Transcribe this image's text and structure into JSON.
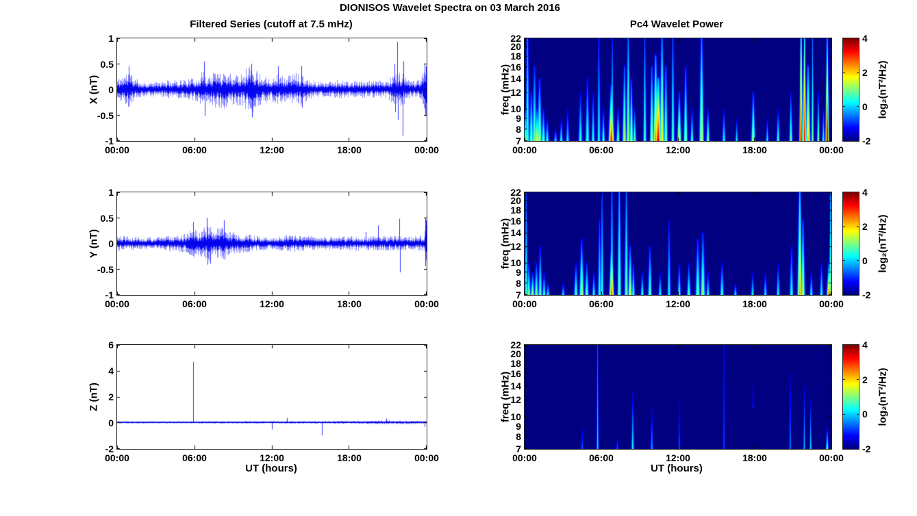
{
  "figure_title": "DIONISOS Wavelet Spectra on 03 March 2016",
  "column_titles": {
    "left": "Filtered Series (cutoff at 7.5 mHz)",
    "right": "Pc4 Wavelet Power"
  },
  "xlabel": "UT (hours)",
  "time_ticks": {
    "labels": [
      "00:00",
      "06:00",
      "12:00",
      "18:00",
      "00:00"
    ],
    "fractions": [
      0,
      0.25,
      0.5,
      0.75,
      1
    ]
  },
  "colorbar": {
    "label": "log₂(nT²/Hz)",
    "ticks": [
      4,
      2,
      0,
      -2
    ],
    "range": [
      -2,
      4
    ],
    "colormap": "jet"
  },
  "colors": {
    "line": "#0000ff",
    "background": "#ffffff",
    "axis": "#000000",
    "heatmap_background": "#000080"
  },
  "chart_data": [
    {
      "type": "line",
      "panel": "X",
      "ylabel": "X (nT)",
      "ylim": [
        -1,
        1
      ],
      "yticks": [
        1,
        0.5,
        0,
        -0.5,
        -1
      ],
      "x_range_hours": [
        0,
        24
      ],
      "xticks": [
        "00:00",
        "06:00",
        "12:00",
        "18:00",
        "00:00"
      ],
      "envelope_note": "[time_h, amplitude_nT] noise envelope",
      "envelope": [
        [
          0,
          0.18
        ],
        [
          0.5,
          0.25
        ],
        [
          0.9,
          0.3
        ],
        [
          1.3,
          0.2
        ],
        [
          2,
          0.12
        ],
        [
          3,
          0.12
        ],
        [
          4,
          0.15
        ],
        [
          5,
          0.17
        ],
        [
          6,
          0.18
        ],
        [
          6.7,
          0.3
        ],
        [
          7,
          0.22
        ],
        [
          7.6,
          0.3
        ],
        [
          8.3,
          0.32
        ],
        [
          9,
          0.26
        ],
        [
          9.7,
          0.3
        ],
        [
          10.3,
          0.42
        ],
        [
          10.6,
          0.38
        ],
        [
          11,
          0.28
        ],
        [
          11.6,
          0.24
        ],
        [
          12,
          0.2
        ],
        [
          12.5,
          0.27
        ],
        [
          13,
          0.2
        ],
        [
          13.8,
          0.28
        ],
        [
          14.3,
          0.28
        ],
        [
          15,
          0.15
        ],
        [
          16,
          0.13
        ],
        [
          17,
          0.16
        ],
        [
          18,
          0.13
        ],
        [
          19,
          0.14
        ],
        [
          20,
          0.14
        ],
        [
          21,
          0.16
        ],
        [
          21.8,
          0.3
        ],
        [
          22.2,
          0.28
        ],
        [
          22.6,
          0.15
        ],
        [
          23,
          0.14
        ],
        [
          23.6,
          0.16
        ],
        [
          23.85,
          0.35
        ],
        [
          24,
          0.5
        ]
      ],
      "spikes": [
        [
          0.9,
          0.45
        ],
        [
          0.93,
          -0.33
        ],
        [
          6.78,
          0.55
        ],
        [
          6.8,
          -0.52
        ],
        [
          10.42,
          0.5
        ],
        [
          10.5,
          -0.55
        ],
        [
          12.52,
          0.45
        ],
        [
          14.32,
          0.46
        ],
        [
          14.35,
          -0.36
        ],
        [
          21.55,
          0.5
        ],
        [
          21.6,
          -0.45
        ],
        [
          21.77,
          0.93
        ],
        [
          21.82,
          -0.6
        ],
        [
          22.2,
          -0.91
        ],
        [
          22.25,
          0.55
        ],
        [
          23.9,
          0.5
        ],
        [
          23.95,
          -0.5
        ],
        [
          23.99,
          0.45
        ]
      ]
    },
    {
      "type": "line",
      "panel": "Y",
      "ylabel": "Y (nT)",
      "ylim": [
        -1,
        1
      ],
      "yticks": [
        1,
        0.5,
        0,
        -0.5,
        -1
      ],
      "x_range_hours": [
        0,
        24
      ],
      "xticks": [
        "00:00",
        "06:00",
        "12:00",
        "18:00",
        "00:00"
      ],
      "envelope": [
        [
          0,
          0.14
        ],
        [
          1,
          0.13
        ],
        [
          2,
          0.1
        ],
        [
          3,
          0.1
        ],
        [
          4,
          0.13
        ],
        [
          4.6,
          0.16
        ],
        [
          5.3,
          0.15
        ],
        [
          5.9,
          0.26
        ],
        [
          6.3,
          0.22
        ],
        [
          6.9,
          0.3
        ],
        [
          7.2,
          0.3
        ],
        [
          7.6,
          0.23
        ],
        [
          8.2,
          0.28
        ],
        [
          8.6,
          0.2
        ],
        [
          9.3,
          0.17
        ],
        [
          10,
          0.15
        ],
        [
          11,
          0.12
        ],
        [
          12,
          0.11
        ],
        [
          13,
          0.13
        ],
        [
          14,
          0.14
        ],
        [
          15,
          0.12
        ],
        [
          16,
          0.1
        ],
        [
          17,
          0.11
        ],
        [
          18,
          0.12
        ],
        [
          19,
          0.12
        ],
        [
          20,
          0.12
        ],
        [
          21,
          0.12
        ],
        [
          22,
          0.12
        ],
        [
          23,
          0.12
        ],
        [
          23.8,
          0.15
        ],
        [
          24,
          0.35
        ]
      ],
      "spikes": [
        [
          5.92,
          0.42
        ],
        [
          6.95,
          0.5
        ],
        [
          7.0,
          -0.42
        ],
        [
          7.25,
          -0.4
        ],
        [
          8.3,
          0.45
        ],
        [
          8.33,
          -0.32
        ],
        [
          19.3,
          0.22
        ],
        [
          20.3,
          0.35
        ],
        [
          21.95,
          0.48
        ],
        [
          22.0,
          -0.57
        ],
        [
          23.95,
          0.5
        ],
        [
          23.97,
          -0.45
        ],
        [
          24,
          0.45
        ]
      ]
    },
    {
      "type": "line",
      "panel": "Z",
      "ylabel": "Z (nT)",
      "ylim": [
        -2,
        6
      ],
      "yticks": [
        6,
        4,
        2,
        0,
        -2
      ],
      "x_range_hours": [
        0,
        24
      ],
      "xticks": [
        "00:00",
        "06:00",
        "12:00",
        "18:00",
        "00:00"
      ],
      "envelope": [
        [
          0,
          0.07
        ],
        [
          4,
          0.07
        ],
        [
          8,
          0.08
        ],
        [
          12,
          0.08
        ],
        [
          16,
          0.09
        ],
        [
          19,
          0.1
        ],
        [
          21,
          0.13
        ],
        [
          22,
          0.12
        ],
        [
          24,
          0.1
        ]
      ],
      "spikes": [
        [
          5.9,
          4.7
        ],
        [
          12.05,
          -0.55
        ],
        [
          13.2,
          0.35
        ],
        [
          15.9,
          -1.0
        ],
        [
          20.9,
          0.3
        ],
        [
          23.9,
          -0.35
        ]
      ]
    },
    {
      "type": "heatmap",
      "panel": "X",
      "ylabel": "freq (mHz)",
      "yscale": "log",
      "ylim_mHz": [
        7,
        22
      ],
      "yticks": [
        22,
        20,
        18,
        16,
        14,
        12,
        10,
        9,
        8,
        7
      ],
      "zlabel": "log₂(nT²/Hz)",
      "zlim": [
        -2,
        4
      ],
      "colormap": "jet",
      "event_format": "[time_h, freq_top_mHz, power_at_bottom, power_at_top, width_min, (optional freq_bottom_mHz)]",
      "events": [
        [
          0.05,
          10,
          1.5,
          -1,
          5
        ],
        [
          0.2,
          22,
          0.8,
          -0.5,
          6
        ],
        [
          0.5,
          12,
          1.2,
          -1,
          6
        ],
        [
          0.75,
          16,
          1.0,
          -1,
          7
        ],
        [
          0.95,
          10,
          1.9,
          -1,
          8
        ],
        [
          1.15,
          14,
          1.5,
          -1,
          7
        ],
        [
          1.45,
          10,
          1.0,
          -1.2,
          6
        ],
        [
          1.75,
          9,
          0.8,
          -1.4,
          5
        ],
        [
          2.4,
          8,
          0.3,
          -1.6,
          5
        ],
        [
          2.85,
          9,
          0.6,
          -1.5,
          5
        ],
        [
          3.35,
          10,
          0.4,
          -1.5,
          5
        ],
        [
          4.35,
          12,
          0.6,
          -1.3,
          6
        ],
        [
          4.9,
          14,
          0.9,
          -1.2,
          6
        ],
        [
          5.35,
          12,
          0.7,
          -1.3,
          5
        ],
        [
          5.8,
          22,
          0.5,
          -1,
          5
        ],
        [
          6.15,
          10,
          0.8,
          -1.3,
          5
        ],
        [
          6.78,
          13,
          3.2,
          -0.8,
          8
        ],
        [
          6.85,
          22,
          0.9,
          -0.9,
          4
        ],
        [
          7.3,
          10,
          1.2,
          -1.2,
          5
        ],
        [
          7.8,
          16,
          1.5,
          -0.8,
          6
        ],
        [
          8.1,
          22,
          1.3,
          -0.5,
          6
        ],
        [
          8.35,
          14,
          1.8,
          -1,
          5
        ],
        [
          8.6,
          10,
          1.0,
          -1.2,
          5
        ],
        [
          9.4,
          22,
          0.8,
          -0.8,
          5
        ],
        [
          9.95,
          16,
          1.5,
          -0.8,
          6
        ],
        [
          10.25,
          18,
          2.6,
          -0.5,
          7
        ],
        [
          10.45,
          14,
          3.6,
          -0.3,
          9
        ],
        [
          10.75,
          22,
          2.0,
          -0.5,
          7
        ],
        [
          11.05,
          16,
          1.2,
          -0.8,
          6
        ],
        [
          11.6,
          22,
          0.9,
          -0.7,
          5
        ],
        [
          12.1,
          12,
          2.1,
          -1,
          6
        ],
        [
          12.6,
          16,
          1.4,
          -1,
          6
        ],
        [
          13.1,
          10,
          0.8,
          -1.3,
          5
        ],
        [
          13.85,
          22,
          1.8,
          -0.6,
          7
        ],
        [
          14.35,
          10,
          1.2,
          -1.2,
          5
        ],
        [
          15.6,
          10,
          0.5,
          -1.4,
          5
        ],
        [
          16.6,
          9,
          0.4,
          -1.5,
          4
        ],
        [
          17.9,
          12,
          1.6,
          -1,
          6
        ],
        [
          19.0,
          9,
          0.4,
          -1.5,
          4
        ],
        [
          19.85,
          10,
          0.7,
          -1.4,
          5
        ],
        [
          20.85,
          12,
          1.0,
          -1.2,
          5
        ],
        [
          21.65,
          22,
          3.6,
          0.8,
          5
        ],
        [
          21.92,
          22,
          3.4,
          0.3,
          5
        ],
        [
          22.2,
          16,
          2.2,
          -0.5,
          7
        ],
        [
          22.55,
          22,
          1.0,
          -0.6,
          4
        ],
        [
          23.0,
          12,
          1.2,
          -1.1,
          4
        ],
        [
          23.4,
          10,
          0.7,
          -1.3,
          4
        ],
        [
          23.7,
          22,
          4.0,
          -0.2,
          5
        ]
      ]
    },
    {
      "type": "heatmap",
      "panel": "Y",
      "ylabel": "freq (mHz)",
      "yscale": "log",
      "ylim_mHz": [
        7,
        22
      ],
      "yticks": [
        22,
        20,
        18,
        16,
        14,
        12,
        10,
        9,
        8,
        7
      ],
      "zlabel": "log₂(nT²/Hz)",
      "zlim": [
        -2,
        4
      ],
      "colormap": "jet",
      "events": [
        [
          0.1,
          22,
          0.7,
          -0.8,
          5
        ],
        [
          0.3,
          10,
          1.2,
          -1.2,
          6
        ],
        [
          0.6,
          9,
          1.3,
          -1.2,
          6
        ],
        [
          0.9,
          10,
          1.2,
          -1.2,
          6
        ],
        [
          1.2,
          12,
          0.9,
          -1.2,
          6
        ],
        [
          1.5,
          9,
          0.8,
          -1.4,
          5
        ],
        [
          1.8,
          8,
          0.5,
          -1.5,
          5
        ],
        [
          3.0,
          8,
          0.3,
          -1.6,
          5
        ],
        [
          4.0,
          10,
          0.9,
          -1.3,
          6
        ],
        [
          4.45,
          13,
          1.6,
          -1.1,
          7
        ],
        [
          4.85,
          10,
          1.0,
          -1.2,
          6
        ],
        [
          5.4,
          9,
          0.6,
          -1.3,
          5
        ],
        [
          5.85,
          16,
          0.7,
          -1,
          5
        ],
        [
          6.05,
          22,
          0.6,
          -0.9,
          5
        ],
        [
          6.8,
          12,
          2.8,
          -0.3,
          7
        ],
        [
          6.82,
          22,
          0.7,
          -0.5,
          5
        ],
        [
          7.4,
          22,
          1.1,
          -0.3,
          6
        ],
        [
          7.95,
          22,
          1.0,
          -0.6,
          6
        ],
        [
          8.25,
          12,
          1.7,
          -0.9,
          6
        ],
        [
          8.5,
          10,
          0.8,
          -1.2,
          5
        ],
        [
          9.2,
          9,
          0.7,
          -1.3,
          5
        ],
        [
          9.8,
          12,
          1.0,
          -1.1,
          6
        ],
        [
          10.6,
          9,
          0.5,
          -1.4,
          5
        ],
        [
          11.3,
          16,
          0.5,
          -1.2,
          5
        ],
        [
          12.1,
          10,
          0.7,
          -1.3,
          5
        ],
        [
          12.85,
          10,
          0.8,
          -1.3,
          6
        ],
        [
          13.55,
          13,
          1.1,
          -1.1,
          7
        ],
        [
          13.95,
          14,
          1.3,
          -1,
          7
        ],
        [
          14.35,
          9,
          0.5,
          -1.4,
          5
        ],
        [
          15.45,
          10,
          0.7,
          -1.3,
          6
        ],
        [
          16.5,
          8,
          0.3,
          -1.6,
          5
        ],
        [
          17.85,
          9,
          0.4,
          -1.5,
          5
        ],
        [
          18.85,
          9,
          0.4,
          -1.5,
          5
        ],
        [
          19.85,
          10,
          0.5,
          -1.4,
          5
        ],
        [
          20.9,
          12,
          0.6,
          -1.3,
          6
        ],
        [
          21.55,
          22,
          2.4,
          -0.1,
          7
        ],
        [
          21.8,
          16,
          1.7,
          -0.7,
          6
        ],
        [
          22.45,
          9,
          0.5,
          -1.4,
          5
        ],
        [
          23.25,
          10,
          0.6,
          -1.3,
          5
        ],
        [
          23.85,
          10,
          2.9,
          -0.8,
          7
        ],
        [
          23.97,
          22,
          1.1,
          -0.3,
          5
        ]
      ]
    },
    {
      "type": "heatmap",
      "panel": "Z",
      "ylabel": "freq (mHz)",
      "yscale": "log",
      "ylim_mHz": [
        7,
        22
      ],
      "yticks": [
        22,
        20,
        18,
        16,
        14,
        12,
        10,
        9,
        8,
        7
      ],
      "zlabel": "log₂(nT²/Hz)",
      "zlim": [
        -2,
        4
      ],
      "colormap": "jet",
      "events": [
        [
          4.5,
          9,
          -0.6,
          -1.8,
          4
        ],
        [
          5.7,
          22,
          0.3,
          -0.7,
          3
        ],
        [
          7.25,
          8,
          -0.5,
          -1.7,
          3
        ],
        [
          8.45,
          13,
          0.5,
          -1.5,
          4
        ],
        [
          9.95,
          11,
          -0.2,
          -1.6,
          4
        ],
        [
          12.1,
          12,
          -0.6,
          -1.5,
          3
        ],
        [
          15.6,
          22,
          -0.8,
          -1.0,
          3
        ],
        [
          17.9,
          14,
          -1.0,
          -1.5,
          3,
          11
        ],
        [
          20.8,
          16,
          -0.3,
          -1.4,
          3
        ],
        [
          21.9,
          14,
          0.0,
          -1.4,
          3
        ],
        [
          22.4,
          12,
          0.3,
          -1.4,
          3
        ],
        [
          23.7,
          9,
          0.9,
          -1.5,
          4
        ]
      ]
    }
  ]
}
